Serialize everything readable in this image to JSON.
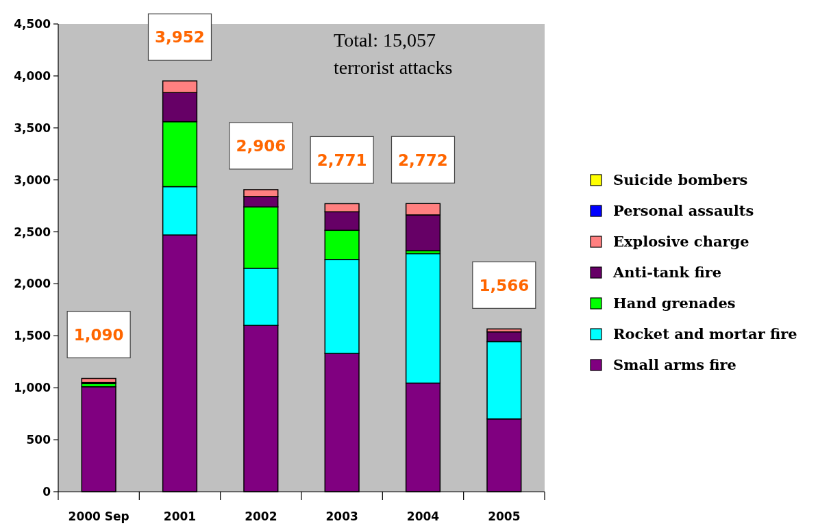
{
  "chart_data": {
    "type": "bar",
    "stacked": true,
    "annotations": [
      "Total: 15,057\nterrorist attacks"
    ],
    "categories": [
      "2000 Sep",
      "2001",
      "2002",
      "2003",
      "2004",
      "2005"
    ],
    "series": [
      {
        "name": "Small arms fire",
        "color": "#800080",
        "values": [
          1010,
          2470,
          1600,
          1330,
          1045,
          700
        ]
      },
      {
        "name": "Rocket and mortar fire",
        "color": "#00ffff",
        "values": [
          0,
          465,
          550,
          905,
          1245,
          745
        ]
      },
      {
        "name": "Hand grenades",
        "color": "#00ff00",
        "values": [
          30,
          625,
          590,
          280,
          28,
          0
        ]
      },
      {
        "name": "Anti-tank fire",
        "color": "#660066",
        "values": [
          10,
          280,
          100,
          178,
          345,
          93
        ]
      },
      {
        "name": "Explosive charge",
        "color": "#ff8080",
        "values": [
          40,
          112,
          66,
          78,
          109,
          28
        ]
      },
      {
        "name": "Personal assaults",
        "color": "#0000ff",
        "values": [
          0,
          0,
          0,
          0,
          0,
          0
        ]
      },
      {
        "name": "Suicide bombers",
        "color": "#ffff00",
        "values": [
          0,
          0,
          0,
          0,
          0,
          0
        ]
      }
    ],
    "totals": [
      "1,090",
      "3,952",
      "2,906",
      "2,771",
      "2,772",
      "1,566"
    ],
    "ylim": [
      0,
      4500
    ],
    "yticks": [
      0,
      500,
      {
        "value": 1000,
        "label": "1,000"
      },
      {
        "value": 1500,
        "label": "1,500"
      },
      {
        "value": 2000,
        "label": "2,000"
      },
      {
        "value": 2500,
        "label": "2,500"
      },
      {
        "value": 3000,
        "label": "3,000"
      },
      {
        "value": 3500,
        "label": "3,500"
      },
      {
        "value": 4000,
        "label": "4,000"
      },
      {
        "value": 4500,
        "label": "4,500"
      }
    ],
    "legend": "right"
  }
}
